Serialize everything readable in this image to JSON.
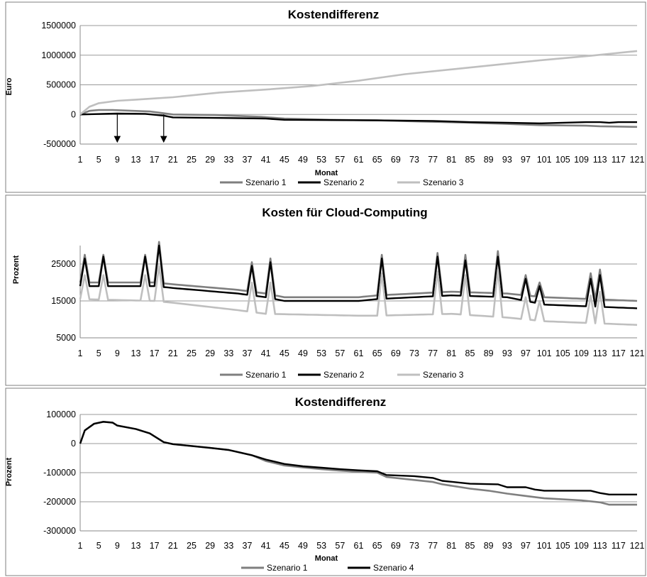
{
  "chart_data": [
    {
      "type": "line",
      "title": "Kostendifferenz",
      "xlabel": "Monat",
      "ylabel": "Euro",
      "ylim": [
        -500000,
        1500000
      ],
      "yticks": [
        -500000,
        0,
        500000,
        1000000,
        1500000
      ],
      "xticks": [
        1,
        5,
        9,
        13,
        17,
        21,
        25,
        29,
        33,
        37,
        41,
        45,
        49,
        53,
        57,
        61,
        65,
        69,
        73,
        77,
        81,
        85,
        89,
        93,
        97,
        101,
        105,
        109,
        113,
        117,
        121
      ],
      "legend_position": "bottom",
      "annotations": [
        {
          "type": "arrow-down",
          "x": 9
        },
        {
          "type": "arrow-down",
          "x": 19
        }
      ],
      "series": [
        {
          "name": "Szenario 1",
          "color": "#7f7f7f",
          "points": [
            [
              1,
              0
            ],
            [
              3,
              60000
            ],
            [
              5,
              75000
            ],
            [
              8,
              75000
            ],
            [
              12,
              62000
            ],
            [
              16,
              50000
            ],
            [
              19,
              20000
            ],
            [
              21,
              0
            ],
            [
              30,
              -10000
            ],
            [
              40,
              -40000
            ],
            [
              45,
              -70000
            ],
            [
              55,
              -90000
            ],
            [
              65,
              -100000
            ],
            [
              75,
              -120000
            ],
            [
              85,
              -140000
            ],
            [
              93,
              -160000
            ],
            [
              100,
              -180000
            ],
            [
              110,
              -190000
            ],
            [
              113,
              -200000
            ],
            [
              121,
              -210000
            ]
          ]
        },
        {
          "name": "Szenario 2",
          "color": "#000000",
          "points": [
            [
              1,
              0
            ],
            [
              9,
              15000
            ],
            [
              15,
              10000
            ],
            [
              19,
              -20000
            ],
            [
              21,
              -50000
            ],
            [
              33,
              -60000
            ],
            [
              41,
              -70000
            ],
            [
              45,
              -90000
            ],
            [
              65,
              -100000
            ],
            [
              77,
              -110000
            ],
            [
              85,
              -130000
            ],
            [
              93,
              -140000
            ],
            [
              97,
              -145000
            ],
            [
              100,
              -150000
            ],
            [
              110,
              -130000
            ],
            [
              113,
              -130000
            ],
            [
              115,
              -140000
            ],
            [
              117,
              -130000
            ],
            [
              121,
              -130000
            ]
          ]
        },
        {
          "name": "Szenario 3",
          "color": "#bfbfbf",
          "points": [
            [
              1,
              0
            ],
            [
              3,
              130000
            ],
            [
              5,
              190000
            ],
            [
              9,
              230000
            ],
            [
              13,
              250000
            ],
            [
              17,
              270000
            ],
            [
              21,
              290000
            ],
            [
              31,
              370000
            ],
            [
              41,
              420000
            ],
            [
              51,
              480000
            ],
            [
              61,
              570000
            ],
            [
              71,
              680000
            ],
            [
              81,
              760000
            ],
            [
              91,
              840000
            ],
            [
              101,
              920000
            ],
            [
              111,
              990000
            ],
            [
              121,
              1070000
            ]
          ]
        }
      ]
    },
    {
      "type": "line",
      "title": "Kosten für Cloud-Computing",
      "xlabel": "",
      "ylabel": "Prozent",
      "ylim": [
        5000,
        30000
      ],
      "yticks": [
        5000,
        15000,
        25000
      ],
      "xticks": [
        1,
        5,
        9,
        13,
        17,
        21,
        25,
        29,
        33,
        37,
        41,
        45,
        49,
        53,
        57,
        61,
        65,
        69,
        73,
        77,
        81,
        85,
        89,
        93,
        97,
        101,
        105,
        109,
        113,
        117,
        121
      ],
      "legend_position": "bottom",
      "series": [
        {
          "name": "Szenario 1",
          "color": "#7f7f7f",
          "base": [
            [
              1,
              20000
            ],
            [
              17,
              20000
            ],
            [
              21,
              19500
            ],
            [
              35,
              18000
            ],
            [
              41,
              17000
            ],
            [
              45,
              16000
            ],
            [
              61,
              16000
            ],
            [
              65,
              16500
            ],
            [
              81,
              17500
            ],
            [
              93,
              17000
            ],
            [
              101,
              16000
            ],
            [
              121,
              15000
            ]
          ],
          "spikes": [
            [
              2,
              27500
            ],
            [
              6,
              27500
            ],
            [
              15,
              27500
            ],
            [
              18,
              31000
            ],
            [
              38,
              25500
            ],
            [
              42,
              26500
            ],
            [
              66,
              27500
            ],
            [
              78,
              28000
            ],
            [
              84,
              27500
            ],
            [
              91,
              28500
            ],
            [
              97,
              22000
            ],
            [
              100,
              20000
            ],
            [
              111,
              22500
            ],
            [
              113,
              23500
            ]
          ]
        },
        {
          "name": "Szenario 2",
          "color": "#000000",
          "base": [
            [
              1,
              19000
            ],
            [
              17,
              19000
            ],
            [
              21,
              18500
            ],
            [
              35,
              17000
            ],
            [
              41,
              16000
            ],
            [
              45,
              15000
            ],
            [
              61,
              15000
            ],
            [
              65,
              15500
            ],
            [
              81,
              16500
            ],
            [
              93,
              16000
            ],
            [
              101,
              14000
            ],
            [
              121,
              13000
            ]
          ],
          "spikes": [
            [
              2,
              26500
            ],
            [
              6,
              27000
            ],
            [
              15,
              27000
            ],
            [
              18,
              30000
            ],
            [
              38,
              24500
            ],
            [
              42,
              25500
            ],
            [
              66,
              26500
            ],
            [
              78,
              27000
            ],
            [
              84,
              26000
            ],
            [
              91,
              27000
            ],
            [
              97,
              21000
            ],
            [
              100,
              19000
            ],
            [
              111,
              21000
            ],
            [
              113,
              22000
            ]
          ]
        },
        {
          "name": "Szenario 3",
          "color": "#bfbfbf",
          "base": [
            [
              1,
              15500
            ],
            [
              17,
              15000
            ],
            [
              21,
              14500
            ],
            [
              35,
              12500
            ],
            [
              41,
              11500
            ],
            [
              61,
              11000
            ],
            [
              65,
              11000
            ],
            [
              81,
              11500
            ],
            [
              93,
              10500
            ],
            [
              101,
              9500
            ],
            [
              121,
              8500
            ]
          ],
          "spikes": [
            [
              2,
              22000
            ],
            [
              6,
              22000
            ],
            [
              15,
              22000
            ],
            [
              18,
              24500
            ],
            [
              38,
              20000
            ],
            [
              42,
              20000
            ],
            [
              66,
              22500
            ],
            [
              78,
              23000
            ],
            [
              84,
              22000
            ],
            [
              91,
              23500
            ],
            [
              97,
              16000
            ],
            [
              100,
              15000
            ],
            [
              111,
              16500
            ],
            [
              113,
              17500
            ]
          ]
        }
      ]
    },
    {
      "type": "line",
      "title": "Kostendifferenz",
      "xlabel": "Monat",
      "ylabel": "Prozent",
      "ylim": [
        -300000,
        100000
      ],
      "yticks": [
        -300000,
        -200000,
        -100000,
        0,
        100000
      ],
      "xticks": [
        1,
        5,
        9,
        13,
        17,
        21,
        25,
        29,
        33,
        37,
        41,
        45,
        49,
        53,
        57,
        61,
        65,
        69,
        73,
        77,
        81,
        85,
        89,
        93,
        97,
        101,
        105,
        109,
        113,
        117,
        121
      ],
      "legend_position": "bottom",
      "series": [
        {
          "name": "Szenario 1",
          "color": "#7f7f7f",
          "points": [
            [
              1,
              0
            ],
            [
              2,
              45000
            ],
            [
              4,
              68000
            ],
            [
              6,
              75000
            ],
            [
              8,
              72000
            ],
            [
              9,
              62000
            ],
            [
              13,
              50000
            ],
            [
              16,
              35000
            ],
            [
              19,
              5000
            ],
            [
              21,
              -2000
            ],
            [
              29,
              -15000
            ],
            [
              33,
              -22000
            ],
            [
              38,
              -40000
            ],
            [
              41,
              -60000
            ],
            [
              45,
              -75000
            ],
            [
              49,
              -82000
            ],
            [
              53,
              -88000
            ],
            [
              57,
              -93000
            ],
            [
              61,
              -97000
            ],
            [
              65,
              -100000
            ],
            [
              67,
              -115000
            ],
            [
              73,
              -125000
            ],
            [
              77,
              -132000
            ],
            [
              79,
              -140000
            ],
            [
              85,
              -155000
            ],
            [
              89,
              -162000
            ],
            [
              93,
              -172000
            ],
            [
              97,
              -180000
            ],
            [
              101,
              -188000
            ],
            [
              109,
              -195000
            ],
            [
              113,
              -202000
            ],
            [
              115,
              -210000
            ],
            [
              121,
              -210000
            ]
          ]
        },
        {
          "name": "Szenario 4",
          "color": "#000000",
          "points": [
            [
              1,
              0
            ],
            [
              2,
              45000
            ],
            [
              4,
              68000
            ],
            [
              6,
              75000
            ],
            [
              8,
              72000
            ],
            [
              9,
              62000
            ],
            [
              13,
              50000
            ],
            [
              16,
              35000
            ],
            [
              19,
              5000
            ],
            [
              21,
              -2000
            ],
            [
              29,
              -15000
            ],
            [
              33,
              -22000
            ],
            [
              38,
              -40000
            ],
            [
              41,
              -55000
            ],
            [
              45,
              -70000
            ],
            [
              49,
              -78000
            ],
            [
              53,
              -83000
            ],
            [
              57,
              -88000
            ],
            [
              61,
              -92000
            ],
            [
              65,
              -95000
            ],
            [
              67,
              -108000
            ],
            [
              73,
              -112000
            ],
            [
              77,
              -118000
            ],
            [
              79,
              -128000
            ],
            [
              85,
              -138000
            ],
            [
              91,
              -140000
            ],
            [
              93,
              -150000
            ],
            [
              97,
              -150000
            ],
            [
              99,
              -158000
            ],
            [
              101,
              -162000
            ],
            [
              111,
              -162000
            ],
            [
              113,
              -170000
            ],
            [
              115,
              -175000
            ],
            [
              121,
              -175000
            ]
          ]
        }
      ]
    }
  ]
}
